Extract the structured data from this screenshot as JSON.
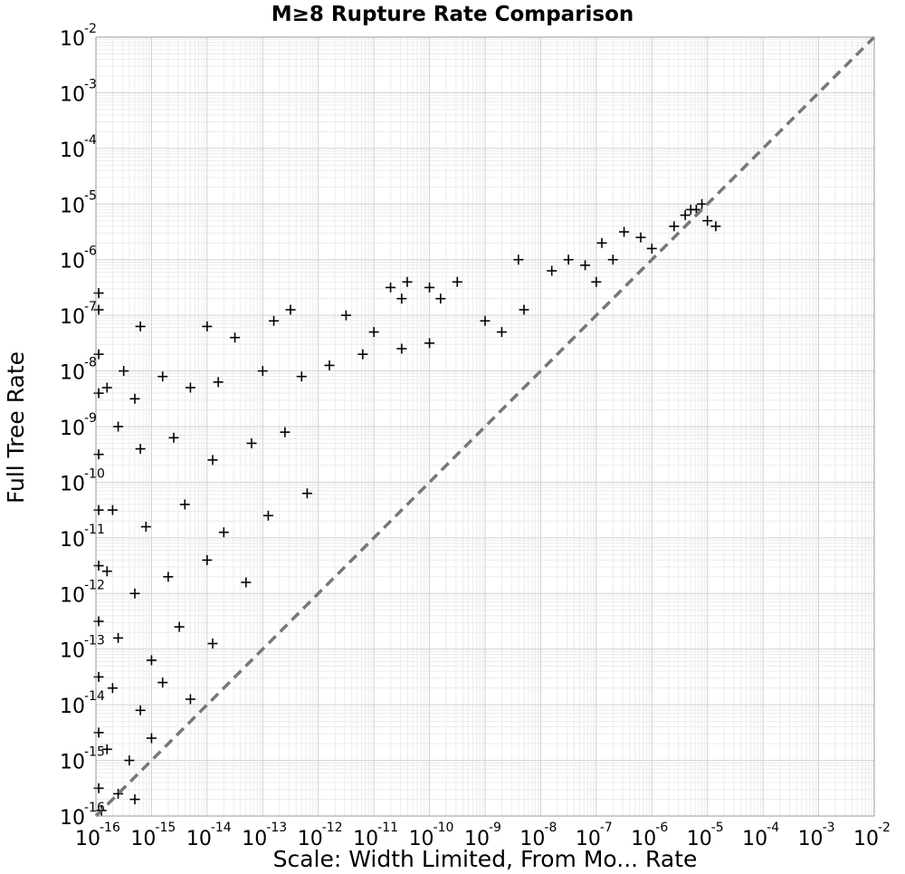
{
  "chart_data": {
    "type": "scatter",
    "title": "M≥8 Rupture Rate Comparison",
    "xlabel": "Scale: Width Limited, From Mo... Rate",
    "ylabel": "Full Tree Rate",
    "xscale": "log",
    "yscale": "log",
    "xlim": [
      1e-16,
      0.01
    ],
    "ylim": [
      1e-16,
      0.01
    ],
    "tick_base": "10",
    "x_tick_exponents": [
      "-16",
      "-15",
      "-14",
      "-13",
      "-12",
      "-11",
      "-10",
      "-9",
      "-8",
      "-7",
      "-6",
      "-5",
      "-4",
      "-3",
      "-2"
    ],
    "y_tick_exponents": [
      "-16",
      "-15",
      "-14",
      "-13",
      "-12",
      "-11",
      "-10",
      "-9",
      "-8",
      "-7",
      "-6",
      "-5",
      "-4",
      "-3",
      "-2"
    ],
    "grid": true,
    "marker": "+",
    "reference_line": {
      "name": "y = x",
      "style": "dashed",
      "color": "#777777",
      "from": [
        1e-16,
        1e-16
      ],
      "to": [
        0.01,
        0.01
      ]
    },
    "series": [
      {
        "name": "ruptures",
        "points_log10": [
          [
            -5.2,
            -5.1
          ],
          [
            -5.4,
            -5.2
          ],
          [
            -5.0,
            -5.3
          ],
          [
            -5.1,
            -5.0
          ],
          [
            -5.6,
            -5.4
          ],
          [
            -5.3,
            -5.1
          ],
          [
            -4.85,
            -5.4
          ],
          [
            -6.5,
            -5.5
          ],
          [
            -6.2,
            -5.6
          ],
          [
            -6.9,
            -5.7
          ],
          [
            -7.5,
            -6.0
          ],
          [
            -7.2,
            -6.1
          ],
          [
            -7.8,
            -6.2
          ],
          [
            -6.7,
            -6.0
          ],
          [
            -8.4,
            -6.0
          ],
          [
            -9.5,
            -6.4
          ],
          [
            -10.0,
            -6.5
          ],
          [
            -10.4,
            -6.4
          ],
          [
            -10.7,
            -6.5
          ],
          [
            -10.5,
            -6.7
          ],
          [
            -9.8,
            -6.7
          ],
          [
            -11.5,
            -7.0
          ],
          [
            -12.5,
            -6.9
          ],
          [
            -12.8,
            -7.1
          ],
          [
            -14.0,
            -7.2
          ],
          [
            -15.2,
            -7.2
          ],
          [
            -13.5,
            -7.4
          ],
          [
            -11.0,
            -7.3
          ],
          [
            -9.0,
            -7.1
          ],
          [
            -8.7,
            -7.3
          ],
          [
            -8.3,
            -6.9
          ],
          [
            -7.0,
            -6.4
          ],
          [
            -6.0,
            -5.8
          ],
          [
            -15.5,
            -8.0
          ],
          [
            -15.8,
            -8.3
          ],
          [
            -15.3,
            -8.5
          ],
          [
            -14.8,
            -8.1
          ],
          [
            -14.3,
            -8.3
          ],
          [
            -13.8,
            -8.2
          ],
          [
            -13.0,
            -8.0
          ],
          [
            -12.3,
            -8.1
          ],
          [
            -11.8,
            -7.9
          ],
          [
            -11.2,
            -7.7
          ],
          [
            -10.5,
            -7.6
          ],
          [
            -10.0,
            -7.5
          ],
          [
            -15.6,
            -9.0
          ],
          [
            -15.2,
            -9.4
          ],
          [
            -14.6,
            -9.2
          ],
          [
            -13.9,
            -9.6
          ],
          [
            -13.2,
            -9.3
          ],
          [
            -12.6,
            -9.1
          ],
          [
            -15.7,
            -10.5
          ],
          [
            -15.1,
            -10.8
          ],
          [
            -14.4,
            -10.4
          ],
          [
            -13.7,
            -10.9
          ],
          [
            -12.9,
            -10.6
          ],
          [
            -12.2,
            -10.2
          ],
          [
            -15.8,
            -11.6
          ],
          [
            -15.3,
            -12.0
          ],
          [
            -14.7,
            -11.7
          ],
          [
            -14.0,
            -11.4
          ],
          [
            -13.3,
            -11.8
          ],
          [
            -15.6,
            -12.8
          ],
          [
            -15.0,
            -13.2
          ],
          [
            -14.5,
            -12.6
          ],
          [
            -13.9,
            -12.9
          ],
          [
            -15.7,
            -13.7
          ],
          [
            -15.2,
            -14.1
          ],
          [
            -14.8,
            -13.6
          ],
          [
            -14.3,
            -13.9
          ],
          [
            -15.8,
            -14.8
          ],
          [
            -15.4,
            -15.0
          ],
          [
            -15.0,
            -14.6
          ],
          [
            -15.6,
            -15.6
          ],
          [
            -15.3,
            -15.7
          ],
          [
            -15.9,
            -15.9
          ],
          [
            -15.95,
            -6.6
          ],
          [
            -15.95,
            -6.9
          ],
          [
            -15.95,
            -7.7
          ],
          [
            -15.95,
            -8.4
          ],
          [
            -15.95,
            -9.5
          ],
          [
            -15.95,
            -10.5
          ],
          [
            -15.95,
            -11.5
          ],
          [
            -15.95,
            -12.5
          ],
          [
            -15.95,
            -13.5
          ],
          [
            -15.95,
            -14.5
          ],
          [
            -15.95,
            -15.5
          ]
        ]
      }
    ]
  }
}
